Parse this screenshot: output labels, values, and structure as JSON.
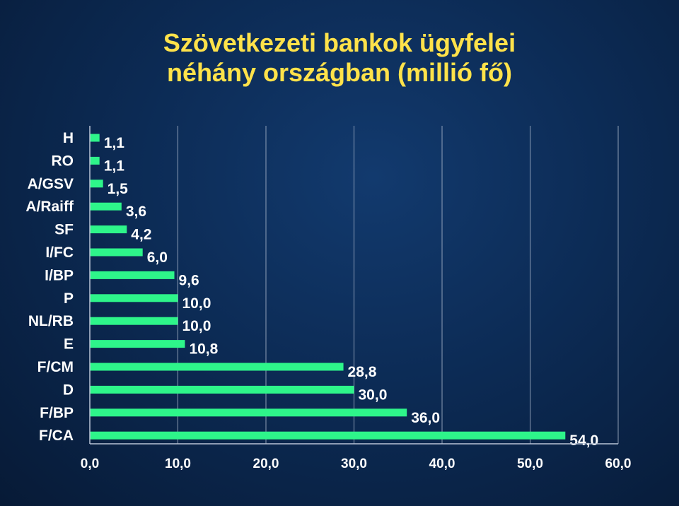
{
  "title": {
    "line1": "Szövetkezeti bankok ügyfelei",
    "line2": "néhány országban (millió fő)"
  },
  "chart_data": {
    "type": "bar",
    "orientation": "horizontal",
    "title": "Szövetkezeti bankok ügyfelei néhány országban (millió fő)",
    "categories": [
      "H",
      "RO",
      "A/GSV",
      "A/Raiff",
      "SF",
      "I/FC",
      "I/BP",
      "P",
      "NL/RB",
      "E",
      "F/CM",
      "D",
      "F/BP",
      "F/CA"
    ],
    "values": [
      1.1,
      1.1,
      1.5,
      3.6,
      4.2,
      6.0,
      9.6,
      10.0,
      10.0,
      10.8,
      28.8,
      30.0,
      36.0,
      54.0
    ],
    "value_labels": [
      "1,1",
      "1,1",
      "1,5",
      "3,6",
      "4,2",
      "6,0",
      "9,6",
      "10,0",
      "10,0",
      "10,8",
      "28,8",
      "30,0",
      "36,0",
      "54,0"
    ],
    "xticks": [
      0,
      10,
      20,
      30,
      40,
      50,
      60
    ],
    "xtick_labels": [
      "0,0",
      "10,0",
      "20,0",
      "30,0",
      "40,0",
      "50,0",
      "60,0"
    ],
    "xlim": [
      0,
      60
    ],
    "xlabel": "",
    "ylabel": "",
    "grid": "vertical",
    "legend": "none",
    "colors": {
      "bar": "#2ef58a",
      "grid": "#b9c4d6",
      "title": "#ffe24a",
      "text": "#ffffff"
    }
  }
}
